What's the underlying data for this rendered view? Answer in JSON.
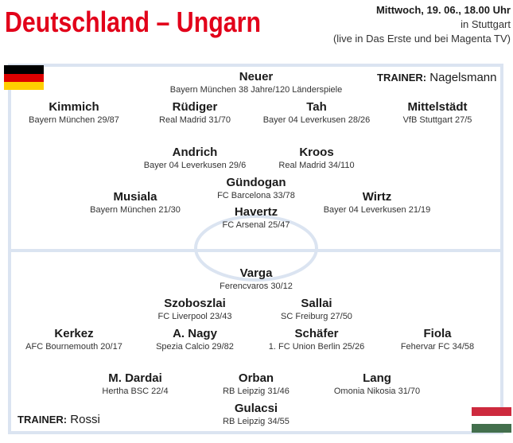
{
  "header": {
    "title": "Deutschland – Ungarn",
    "date": "Mittwoch, 19. 06., 18.00 Uhr",
    "venue": "in Stuttgart",
    "broadcast": "(live in Das Erste und bei Magenta TV)"
  },
  "germany": {
    "trainer_label": "TRAINER:",
    "trainer": "Nagelsmann",
    "players": [
      {
        "name": "Neuer",
        "club": "Bayern München 38 Jahre/120 Länderspiele"
      },
      {
        "name": "Kimmich",
        "club": "Bayern München 29/87"
      },
      {
        "name": "Rüdiger",
        "club": "Real Madrid 31/70"
      },
      {
        "name": "Tah",
        "club": "Bayer 04 Leverkusen 28/26"
      },
      {
        "name": "Mittelstädt",
        "club": "VfB Stuttgart 27/5"
      },
      {
        "name": "Andrich",
        "club": "Bayer 04 Leverkusen 29/6"
      },
      {
        "name": "Kroos",
        "club": "Real Madrid 34/110"
      },
      {
        "name": "Gündogan",
        "club": "FC Barcelona 33/78"
      },
      {
        "name": "Musiala",
        "club": "Bayern München 21/30"
      },
      {
        "name": "Wirtz",
        "club": "Bayer 04 Leverkusen 21/19"
      },
      {
        "name": "Havertz",
        "club": "FC Arsenal 25/47"
      }
    ]
  },
  "hungary": {
    "trainer_label": "TRAINER:",
    "trainer": "Rossi",
    "players": [
      {
        "name": "Varga",
        "club": "Ferencvaros 30/12"
      },
      {
        "name": "Szoboszlai",
        "club": "FC Liverpool 23/43"
      },
      {
        "name": "Sallai",
        "club": "SC Freiburg 27/50"
      },
      {
        "name": "Kerkez",
        "club": "AFC Bournemouth 20/17"
      },
      {
        "name": "A. Nagy",
        "club": "Spezia Calcio 29/82"
      },
      {
        "name": "Schäfer",
        "club": "1. FC Union Berlin 25/26"
      },
      {
        "name": "Fiola",
        "club": "Fehervar FC 34/58"
      },
      {
        "name": "M. Dardai",
        "club": "Hertha BSC 22/4"
      },
      {
        "name": "Orban",
        "club": "RB Leipzig 31/46"
      },
      {
        "name": "Lang",
        "club": "Omonia Nikosia 31/70"
      },
      {
        "name": "Gulacsi",
        "club": "RB Leipzig 34/55"
      }
    ]
  }
}
